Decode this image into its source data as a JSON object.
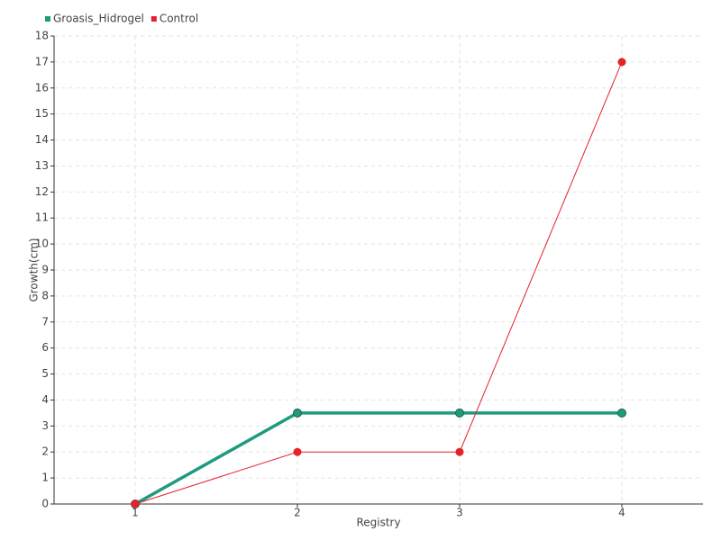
{
  "chart_data": {
    "type": "line",
    "x_label": "Registry",
    "y_label": "Growth(cm)",
    "x": [
      1,
      2,
      3,
      4
    ],
    "series": [
      {
        "name": "Groasis_Hidrogel",
        "color": "#1f9a7e",
        "values": [
          0,
          3.5,
          3.5,
          3.5
        ]
      },
      {
        "name": "Control",
        "color": "#e5212b",
        "values": [
          0,
          2,
          2,
          17
        ]
      }
    ],
    "xlim": [
      0.5,
      4.5
    ],
    "xticks": [
      1,
      2,
      3,
      4
    ],
    "ylim": [
      0,
      18
    ],
    "yticks": [
      0,
      1,
      2,
      3,
      4,
      5,
      6,
      7,
      8,
      9,
      10,
      11,
      12,
      13,
      14,
      15,
      16,
      17,
      18
    ],
    "grid": true,
    "legend": "top-left"
  }
}
